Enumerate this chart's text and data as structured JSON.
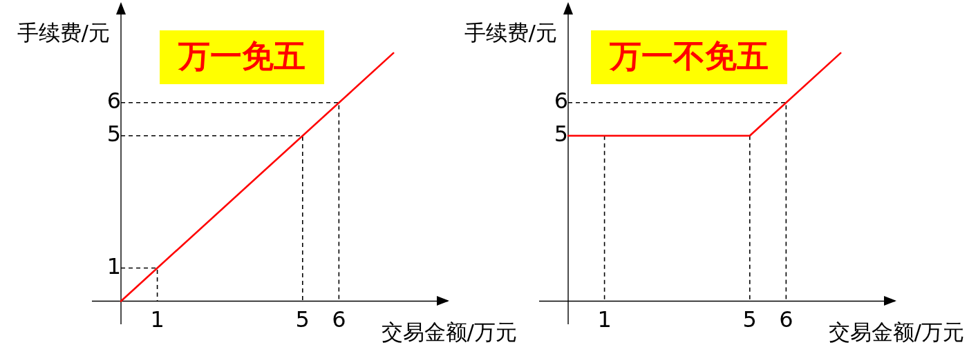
{
  "chart_data": [
    {
      "type": "line",
      "title": "万一免五",
      "xlabel": "交易金额/万元",
      "ylabel": "手续费/元",
      "xlim": [
        -0.8,
        9
      ],
      "ylim": [
        -0.7,
        9
      ],
      "xticks": [
        1,
        5,
        6
      ],
      "yticks": [
        1,
        5,
        6
      ],
      "grid": false,
      "marker": "none",
      "series": [
        {
          "color": "#ff0000",
          "x": [
            0,
            7.5
          ],
          "values": [
            0,
            7.5
          ]
        },
        {
          "color": "#000000",
          "line_style": "dashed",
          "x": [
            0,
            1,
            1
          ],
          "values": [
            1,
            1,
            0
          ]
        },
        {
          "color": "#000000",
          "line_style": "dashed",
          "x": [
            0,
            5,
            5
          ],
          "values": [
            5,
            5,
            0
          ]
        },
        {
          "color": "#000000",
          "line_style": "dashed",
          "x": [
            0,
            6,
            6
          ],
          "values": [
            6,
            6,
            0
          ]
        }
      ]
    },
    {
      "type": "line",
      "title": "万一不免五",
      "xlabel": "交易金额/万元",
      "ylabel": "手续费/元",
      "xlim": [
        -0.8,
        9
      ],
      "ylim": [
        -0.7,
        9
      ],
      "xticks": [
        1,
        5,
        6
      ],
      "yticks": [
        5,
        6
      ],
      "grid": false,
      "marker": "none",
      "series": [
        {
          "color": "#ff0000",
          "x": [
            0,
            5,
            7.5
          ],
          "values": [
            5,
            5,
            7.5
          ]
        },
        {
          "color": "#000000",
          "line_style": "dashed",
          "x": [
            0,
            6,
            6
          ],
          "values": [
            6,
            6,
            0
          ]
        },
        {
          "color": "#000000",
          "line_style": "dashed",
          "x": [
            1,
            1
          ],
          "values": [
            5,
            0
          ]
        },
        {
          "color": "#000000",
          "line_style": "dashed",
          "x": [
            5,
            5
          ],
          "values": [
            5,
            0
          ]
        }
      ]
    }
  ]
}
